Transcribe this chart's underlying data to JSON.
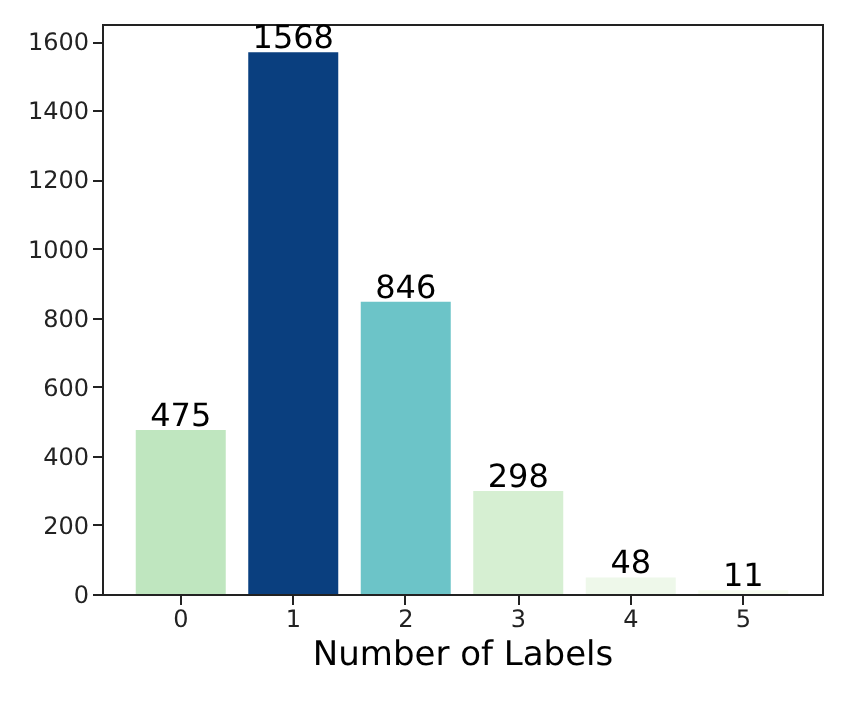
{
  "chart_data": {
    "type": "bar",
    "xlabel": "Number of Labels",
    "categories": [
      "0",
      "1",
      "2",
      "3",
      "4",
      "5"
    ],
    "values": [
      475,
      1568,
      846,
      298,
      48,
      11
    ],
    "colors": [
      "#bfe6bf",
      "#0a3f7f",
      "#6cc4c8",
      "#d6efd2",
      "#eef8ea",
      "#f7fcf0"
    ],
    "ylim": [
      0,
      1650
    ],
    "yticks": [
      0,
      200,
      400,
      600,
      800,
      1000,
      1200,
      1400,
      1600
    ],
    "data_labels": true,
    "grid": false
  }
}
